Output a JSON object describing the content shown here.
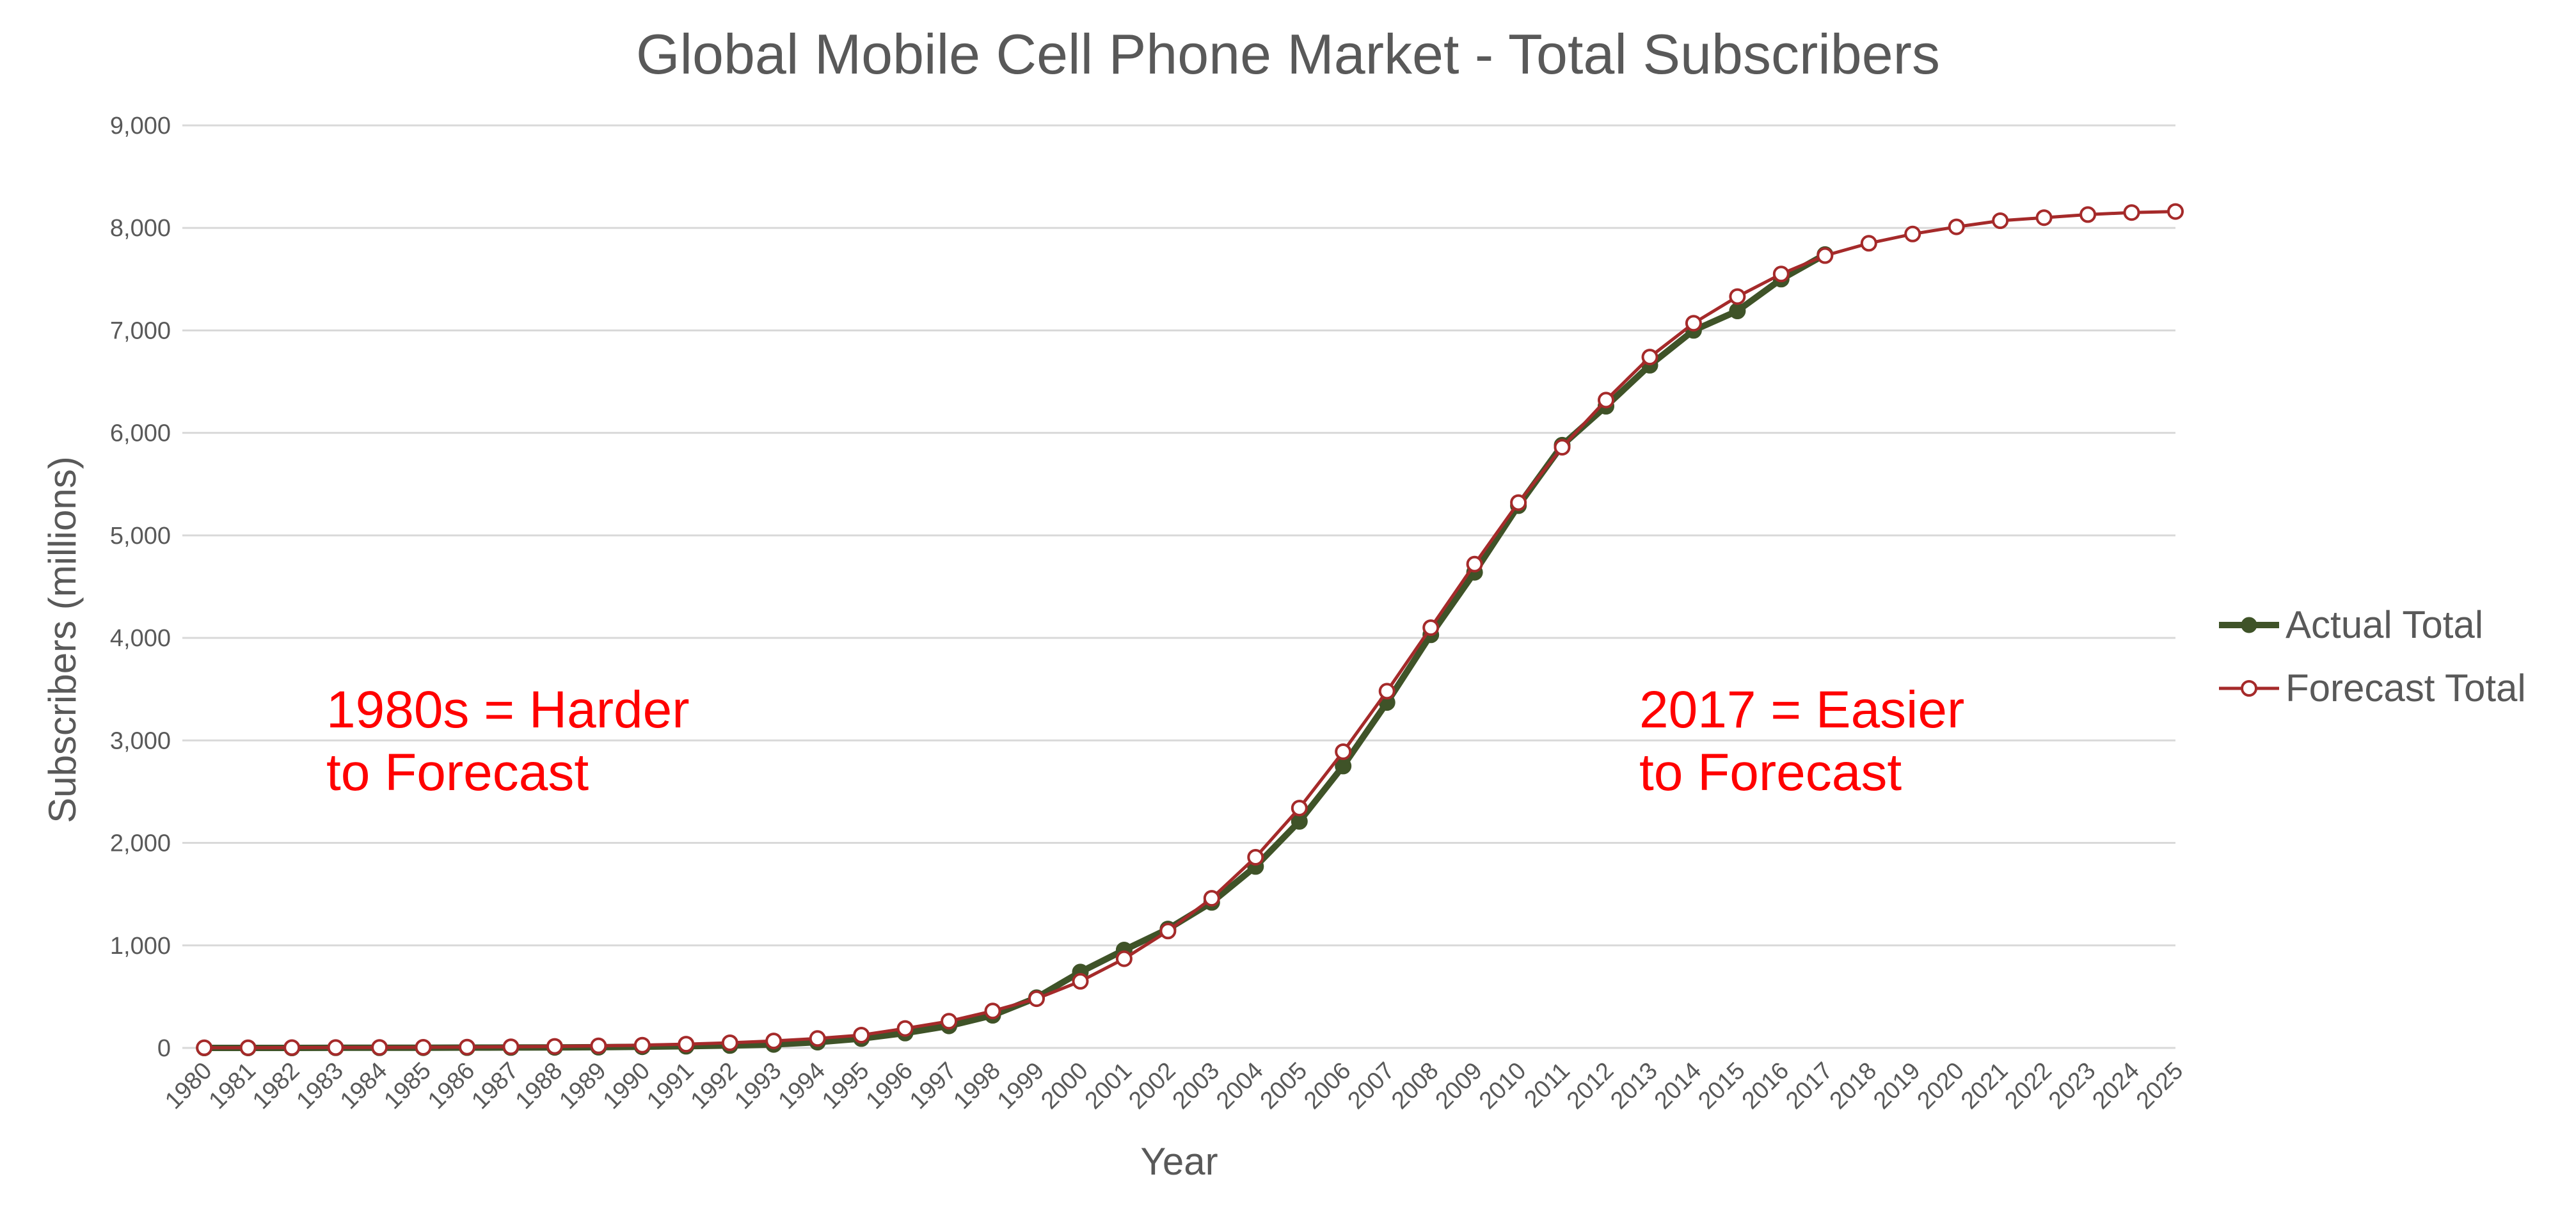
{
  "chart_data": {
    "type": "line",
    "title": "Global Mobile Cell Phone Market - Total Subscribers",
    "xlabel": "Year",
    "ylabel": "Subscribers (millions)",
    "ylim": [
      0,
      9000
    ],
    "yticks": [
      "0",
      "1,000",
      "2,000",
      "3,000",
      "4,000",
      "5,000",
      "6,000",
      "7,000",
      "8,000",
      "9,000"
    ],
    "ytick_values": [
      0,
      1000,
      2000,
      3000,
      4000,
      5000,
      6000,
      7000,
      8000,
      9000
    ],
    "grid": true,
    "legend_position": "right",
    "categories": [
      "1980",
      "1981",
      "1982",
      "1983",
      "1984",
      "1985",
      "1986",
      "1987",
      "1988",
      "1989",
      "1990",
      "1991",
      "1992",
      "1993",
      "1994",
      "1995",
      "1996",
      "1997",
      "1998",
      "1999",
      "2000",
      "2001",
      "2002",
      "2003",
      "2004",
      "2005",
      "2006",
      "2007",
      "2008",
      "2009",
      "2010",
      "2011",
      "2012",
      "2013",
      "2014",
      "2015",
      "2016",
      "2017",
      "2018",
      "2019",
      "2020",
      "2021",
      "2022",
      "2023",
      "2024",
      "2025"
    ],
    "series": [
      {
        "name": "Actual Total",
        "color": "#3f5328",
        "marker": "filled-circle",
        "values": [
          0,
          0,
          0,
          1,
          1,
          2,
          3,
          4,
          5,
          7,
          11,
          16,
          23,
          34,
          56,
          91,
          145,
          215,
          318,
          490,
          740,
          955,
          1160,
          1420,
          1770,
          2210,
          2750,
          3370,
          4030,
          4640,
          5290,
          5880,
          6260,
          6660,
          7000,
          7190,
          7500,
          7740,
          null,
          null,
          null,
          null,
          null,
          null,
          null,
          null
        ]
      },
      {
        "name": "Forecast Total",
        "color": "#a52a2a",
        "marker": "open-circle",
        "values": [
          1,
          2,
          3,
          4,
          5,
          6,
          8,
          11,
          15,
          20,
          27,
          37,
          50,
          68,
          92,
          125,
          190,
          260,
          360,
          480,
          650,
          870,
          1140,
          1460,
          1860,
          2340,
          2890,
          3480,
          4100,
          4720,
          5320,
          5860,
          6320,
          6740,
          7070,
          7330,
          7550,
          7730,
          7850,
          7940,
          8010,
          8070,
          8100,
          8130,
          8150,
          8160
        ]
      }
    ],
    "annotations": [
      {
        "lines": [
          "1980s = Harder",
          "to Forecast"
        ],
        "color": "#ff0000"
      },
      {
        "lines": [
          "2017 = Easier",
          "to Forecast"
        ],
        "color": "#ff0000"
      }
    ]
  }
}
